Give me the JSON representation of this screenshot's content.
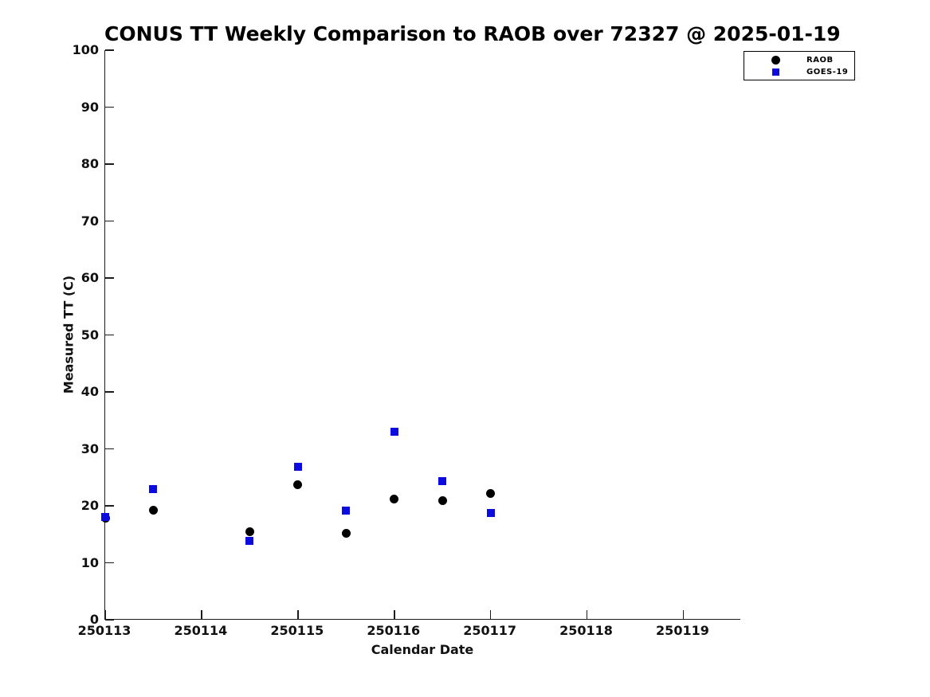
{
  "chart_data": {
    "type": "scatter",
    "title": "CONUS TT Weekly Comparison to RAOB over 72327 @ 2025-01-19",
    "xlabel": "Calendar Date",
    "ylabel": "Measured TT (C)",
    "xlim": [
      250113,
      250119.6
    ],
    "ylim": [
      0,
      100
    ],
    "x_ticks": [
      250113,
      250114,
      250115,
      250116,
      250117,
      250118,
      250119
    ],
    "y_ticks": [
      0,
      10,
      20,
      30,
      40,
      50,
      60,
      70,
      80,
      90,
      100
    ],
    "grid": false,
    "legend_position": "top-right",
    "series": [
      {
        "name": "RAOB",
        "marker": "circle",
        "color": "#000000",
        "x": [
          250113,
          250113.5,
          250114.5,
          250115,
          250115.5,
          250116,
          250116.5,
          250117
        ],
        "y": [
          17.8,
          19.2,
          15.5,
          23.7,
          15.2,
          21.2,
          20.9,
          22.2
        ]
      },
      {
        "name": "GOES-19",
        "marker": "square",
        "color": "#0b0bdf",
        "x": [
          250113,
          250113.5,
          250114.5,
          250115,
          250115.5,
          250116,
          250116.5,
          250117
        ],
        "y": [
          18.0,
          23.0,
          13.9,
          26.8,
          19.1,
          33.0,
          24.3,
          18.7
        ]
      }
    ]
  }
}
